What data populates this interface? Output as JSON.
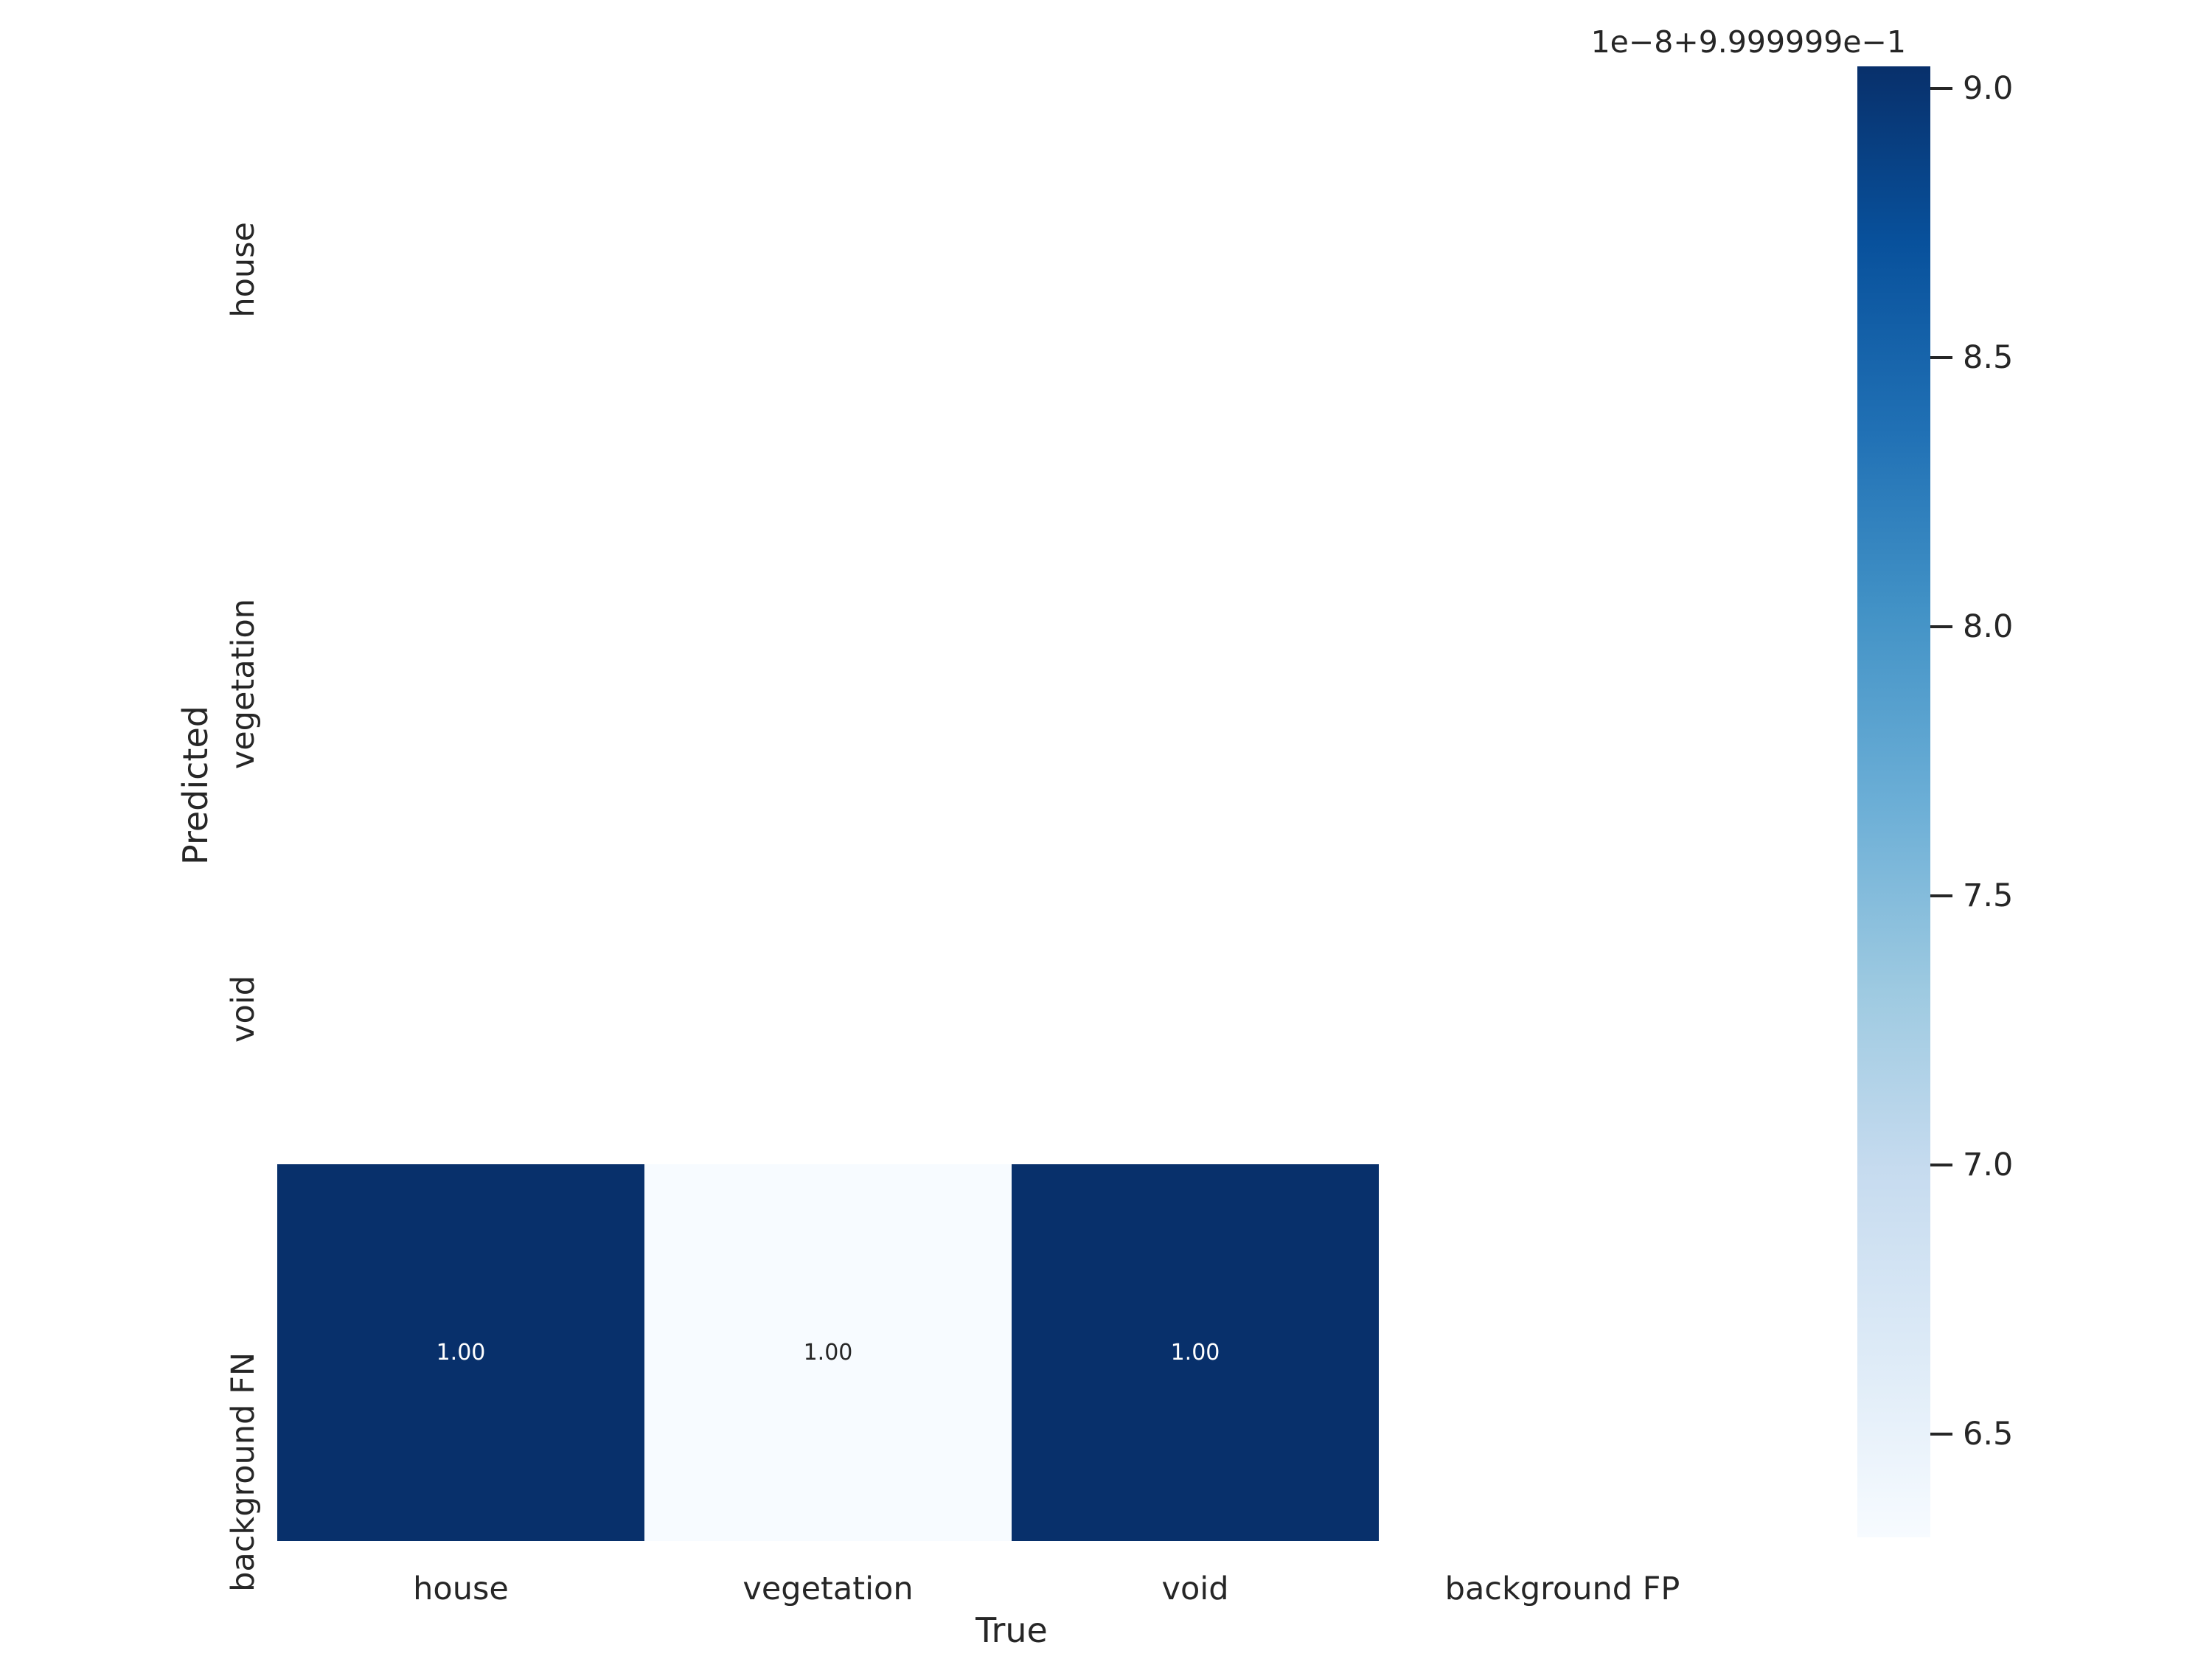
{
  "axes": {
    "xlabel": "True",
    "ylabel": "Predicted",
    "x_ticks": [
      "house",
      "vegetation",
      "void",
      "background FP"
    ],
    "y_ticks": [
      "house",
      "vegetation",
      "void",
      "background FN"
    ]
  },
  "heatmap": {
    "annotated_cells": [
      {
        "row": "background FN",
        "col": "house",
        "label": "1.00",
        "bg": "#08306b",
        "fg": "#ffffff"
      },
      {
        "row": "background FN",
        "col": "vegetation",
        "label": "1.00",
        "bg": "#f7fbff",
        "fg": "#262626"
      },
      {
        "row": "background FN",
        "col": "void",
        "label": "1.00",
        "bg": "#08306b",
        "fg": "#ffffff"
      }
    ]
  },
  "colorbar": {
    "offset_label": "1e−8+9.999999e−1",
    "tick_labels": [
      "9.0",
      "8.5",
      "8.0",
      "7.5",
      "7.0",
      "6.5"
    ],
    "gradient_stops": [
      "#08306b 0%",
      "#08519c 12%",
      "#2171b5 25%",
      "#4292c6 37%",
      "#6baed6 50%",
      "#9ecae1 63%",
      "#c6dbef 75%",
      "#deebf7 88%",
      "#f7fbff 100%"
    ]
  },
  "colors": {
    "background": "#ffffff",
    "text": "#262626",
    "cell_dark": "#08306b",
    "cell_light": "#f7fbff"
  },
  "chart_data": {
    "type": "heatmap",
    "title": "",
    "xlabel": "True",
    "ylabel": "Predicted",
    "columns": [
      "house",
      "vegetation",
      "void",
      "background FP"
    ],
    "rows": [
      "house",
      "vegetation",
      "void",
      "background FN"
    ],
    "values": [
      [
        null,
        null,
        null,
        null
      ],
      [
        null,
        null,
        null,
        null
      ],
      [
        null,
        null,
        null,
        null
      ],
      [
        0.99999999,
        0.99999996,
        0.99999999,
        null
      ]
    ],
    "annotations": [
      [
        null,
        null,
        null,
        null
      ],
      [
        null,
        null,
        null,
        null
      ],
      [
        null,
        null,
        null,
        null
      ],
      [
        "1.00",
        "1.00",
        "1.00",
        null
      ]
    ],
    "colormap": "Blues",
    "colorbar_offset_label": "1e−8+9.999999e−1",
    "colorbar_tick_values": [
      9.0,
      8.5,
      8.0,
      7.5,
      7.0,
      6.5
    ],
    "colorbar_range_in_1e-8_units": [
      6.3,
      9.05
    ],
    "grid": false,
    "legend_position": "none"
  }
}
